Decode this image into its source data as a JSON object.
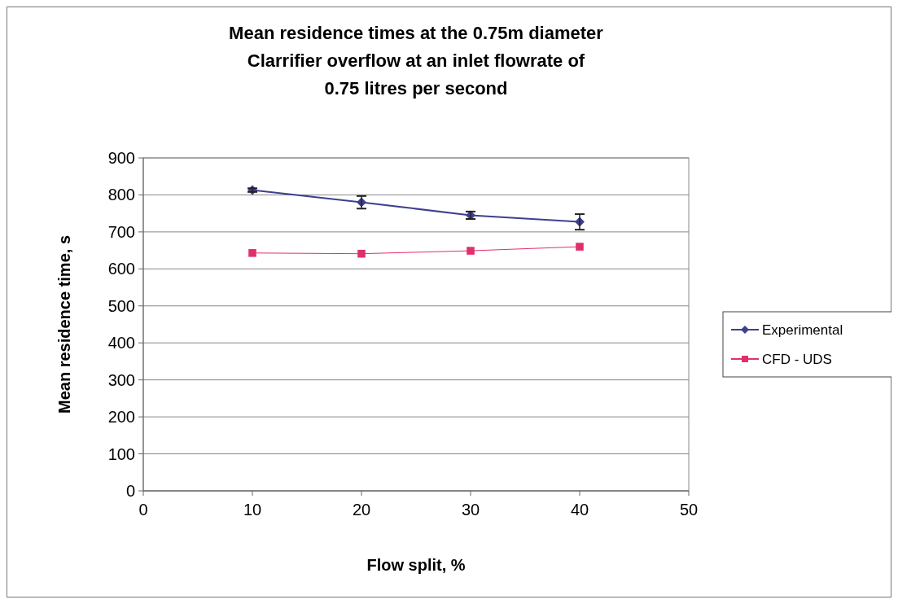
{
  "chart_data": {
    "type": "line",
    "title": "Mean residence times at the 0.75m diameter Clarrifier overflow at an inlet flowrate of 0.75 litres per second",
    "xlabel": "Flow split, %",
    "ylabel": "Mean residence time, s",
    "x": [
      10,
      20,
      30,
      40
    ],
    "series": [
      {
        "name": "Experimental",
        "color": "#3f3f8f",
        "values": [
          813,
          780,
          745,
          727
        ],
        "errors": [
          5,
          17,
          10,
          21
        ],
        "marker": "diamond"
      },
      {
        "name": "CFD - UDS",
        "color": "#e0306a",
        "values": [
          643,
          641,
          649,
          660
        ],
        "marker": "square"
      }
    ],
    "xlim": [
      0,
      50
    ],
    "xticks": [
      0,
      10,
      20,
      30,
      40,
      50
    ],
    "ylim": [
      0,
      900
    ],
    "yticks": [
      0,
      100,
      200,
      300,
      400,
      500,
      600,
      700,
      800,
      900
    ],
    "grid": "y",
    "legend": "right"
  }
}
